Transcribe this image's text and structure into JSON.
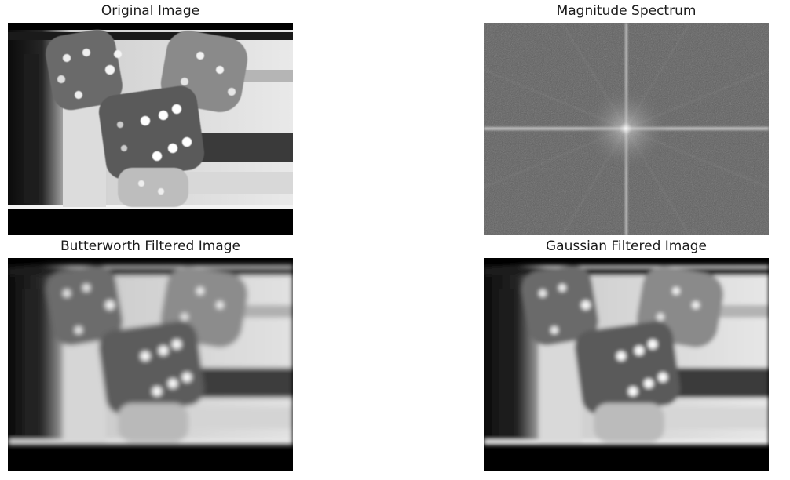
{
  "figure": {
    "panels": [
      {
        "title": "Original Image",
        "content": "dice-photo"
      },
      {
        "title": "Magnitude Spectrum",
        "content": "fft-spectrum"
      },
      {
        "title": "Butterworth Filtered Image",
        "content": "dice-photo-blur"
      },
      {
        "title": "Gaussian Filtered Image",
        "content": "dice-photo-blur"
      }
    ]
  }
}
